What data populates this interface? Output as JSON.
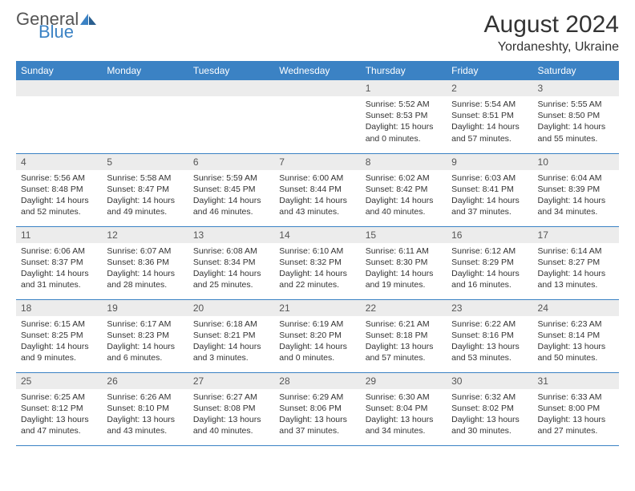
{
  "logo": {
    "text1": "General",
    "text2": "Blue"
  },
  "title": "August 2024",
  "subtitle": "Yordaneshty, Ukraine",
  "colors": {
    "header_bg": "#3b82c4",
    "header_fg": "#ffffff",
    "daynum_bg": "#ececec",
    "text": "#333333",
    "logo_gray": "#555555",
    "logo_blue": "#3b82c4"
  },
  "weekdays": [
    "Sunday",
    "Monday",
    "Tuesday",
    "Wednesday",
    "Thursday",
    "Friday",
    "Saturday"
  ],
  "weeks": [
    [
      {
        "n": "",
        "sunrise": "",
        "sunset": "",
        "daylight": ""
      },
      {
        "n": "",
        "sunrise": "",
        "sunset": "",
        "daylight": ""
      },
      {
        "n": "",
        "sunrise": "",
        "sunset": "",
        "daylight": ""
      },
      {
        "n": "",
        "sunrise": "",
        "sunset": "",
        "daylight": ""
      },
      {
        "n": "1",
        "sunrise": "Sunrise: 5:52 AM",
        "sunset": "Sunset: 8:53 PM",
        "daylight": "Daylight: 15 hours and 0 minutes."
      },
      {
        "n": "2",
        "sunrise": "Sunrise: 5:54 AM",
        "sunset": "Sunset: 8:51 PM",
        "daylight": "Daylight: 14 hours and 57 minutes."
      },
      {
        "n": "3",
        "sunrise": "Sunrise: 5:55 AM",
        "sunset": "Sunset: 8:50 PM",
        "daylight": "Daylight: 14 hours and 55 minutes."
      }
    ],
    [
      {
        "n": "4",
        "sunrise": "Sunrise: 5:56 AM",
        "sunset": "Sunset: 8:48 PM",
        "daylight": "Daylight: 14 hours and 52 minutes."
      },
      {
        "n": "5",
        "sunrise": "Sunrise: 5:58 AM",
        "sunset": "Sunset: 8:47 PM",
        "daylight": "Daylight: 14 hours and 49 minutes."
      },
      {
        "n": "6",
        "sunrise": "Sunrise: 5:59 AM",
        "sunset": "Sunset: 8:45 PM",
        "daylight": "Daylight: 14 hours and 46 minutes."
      },
      {
        "n": "7",
        "sunrise": "Sunrise: 6:00 AM",
        "sunset": "Sunset: 8:44 PM",
        "daylight": "Daylight: 14 hours and 43 minutes."
      },
      {
        "n": "8",
        "sunrise": "Sunrise: 6:02 AM",
        "sunset": "Sunset: 8:42 PM",
        "daylight": "Daylight: 14 hours and 40 minutes."
      },
      {
        "n": "9",
        "sunrise": "Sunrise: 6:03 AM",
        "sunset": "Sunset: 8:41 PM",
        "daylight": "Daylight: 14 hours and 37 minutes."
      },
      {
        "n": "10",
        "sunrise": "Sunrise: 6:04 AM",
        "sunset": "Sunset: 8:39 PM",
        "daylight": "Daylight: 14 hours and 34 minutes."
      }
    ],
    [
      {
        "n": "11",
        "sunrise": "Sunrise: 6:06 AM",
        "sunset": "Sunset: 8:37 PM",
        "daylight": "Daylight: 14 hours and 31 minutes."
      },
      {
        "n": "12",
        "sunrise": "Sunrise: 6:07 AM",
        "sunset": "Sunset: 8:36 PM",
        "daylight": "Daylight: 14 hours and 28 minutes."
      },
      {
        "n": "13",
        "sunrise": "Sunrise: 6:08 AM",
        "sunset": "Sunset: 8:34 PM",
        "daylight": "Daylight: 14 hours and 25 minutes."
      },
      {
        "n": "14",
        "sunrise": "Sunrise: 6:10 AM",
        "sunset": "Sunset: 8:32 PM",
        "daylight": "Daylight: 14 hours and 22 minutes."
      },
      {
        "n": "15",
        "sunrise": "Sunrise: 6:11 AM",
        "sunset": "Sunset: 8:30 PM",
        "daylight": "Daylight: 14 hours and 19 minutes."
      },
      {
        "n": "16",
        "sunrise": "Sunrise: 6:12 AM",
        "sunset": "Sunset: 8:29 PM",
        "daylight": "Daylight: 14 hours and 16 minutes."
      },
      {
        "n": "17",
        "sunrise": "Sunrise: 6:14 AM",
        "sunset": "Sunset: 8:27 PM",
        "daylight": "Daylight: 14 hours and 13 minutes."
      }
    ],
    [
      {
        "n": "18",
        "sunrise": "Sunrise: 6:15 AM",
        "sunset": "Sunset: 8:25 PM",
        "daylight": "Daylight: 14 hours and 9 minutes."
      },
      {
        "n": "19",
        "sunrise": "Sunrise: 6:17 AM",
        "sunset": "Sunset: 8:23 PM",
        "daylight": "Daylight: 14 hours and 6 minutes."
      },
      {
        "n": "20",
        "sunrise": "Sunrise: 6:18 AM",
        "sunset": "Sunset: 8:21 PM",
        "daylight": "Daylight: 14 hours and 3 minutes."
      },
      {
        "n": "21",
        "sunrise": "Sunrise: 6:19 AM",
        "sunset": "Sunset: 8:20 PM",
        "daylight": "Daylight: 14 hours and 0 minutes."
      },
      {
        "n": "22",
        "sunrise": "Sunrise: 6:21 AM",
        "sunset": "Sunset: 8:18 PM",
        "daylight": "Daylight: 13 hours and 57 minutes."
      },
      {
        "n": "23",
        "sunrise": "Sunrise: 6:22 AM",
        "sunset": "Sunset: 8:16 PM",
        "daylight": "Daylight: 13 hours and 53 minutes."
      },
      {
        "n": "24",
        "sunrise": "Sunrise: 6:23 AM",
        "sunset": "Sunset: 8:14 PM",
        "daylight": "Daylight: 13 hours and 50 minutes."
      }
    ],
    [
      {
        "n": "25",
        "sunrise": "Sunrise: 6:25 AM",
        "sunset": "Sunset: 8:12 PM",
        "daylight": "Daylight: 13 hours and 47 minutes."
      },
      {
        "n": "26",
        "sunrise": "Sunrise: 6:26 AM",
        "sunset": "Sunset: 8:10 PM",
        "daylight": "Daylight: 13 hours and 43 minutes."
      },
      {
        "n": "27",
        "sunrise": "Sunrise: 6:27 AM",
        "sunset": "Sunset: 8:08 PM",
        "daylight": "Daylight: 13 hours and 40 minutes."
      },
      {
        "n": "28",
        "sunrise": "Sunrise: 6:29 AM",
        "sunset": "Sunset: 8:06 PM",
        "daylight": "Daylight: 13 hours and 37 minutes."
      },
      {
        "n": "29",
        "sunrise": "Sunrise: 6:30 AM",
        "sunset": "Sunset: 8:04 PM",
        "daylight": "Daylight: 13 hours and 34 minutes."
      },
      {
        "n": "30",
        "sunrise": "Sunrise: 6:32 AM",
        "sunset": "Sunset: 8:02 PM",
        "daylight": "Daylight: 13 hours and 30 minutes."
      },
      {
        "n": "31",
        "sunrise": "Sunrise: 6:33 AM",
        "sunset": "Sunset: 8:00 PM",
        "daylight": "Daylight: 13 hours and 27 minutes."
      }
    ]
  ]
}
